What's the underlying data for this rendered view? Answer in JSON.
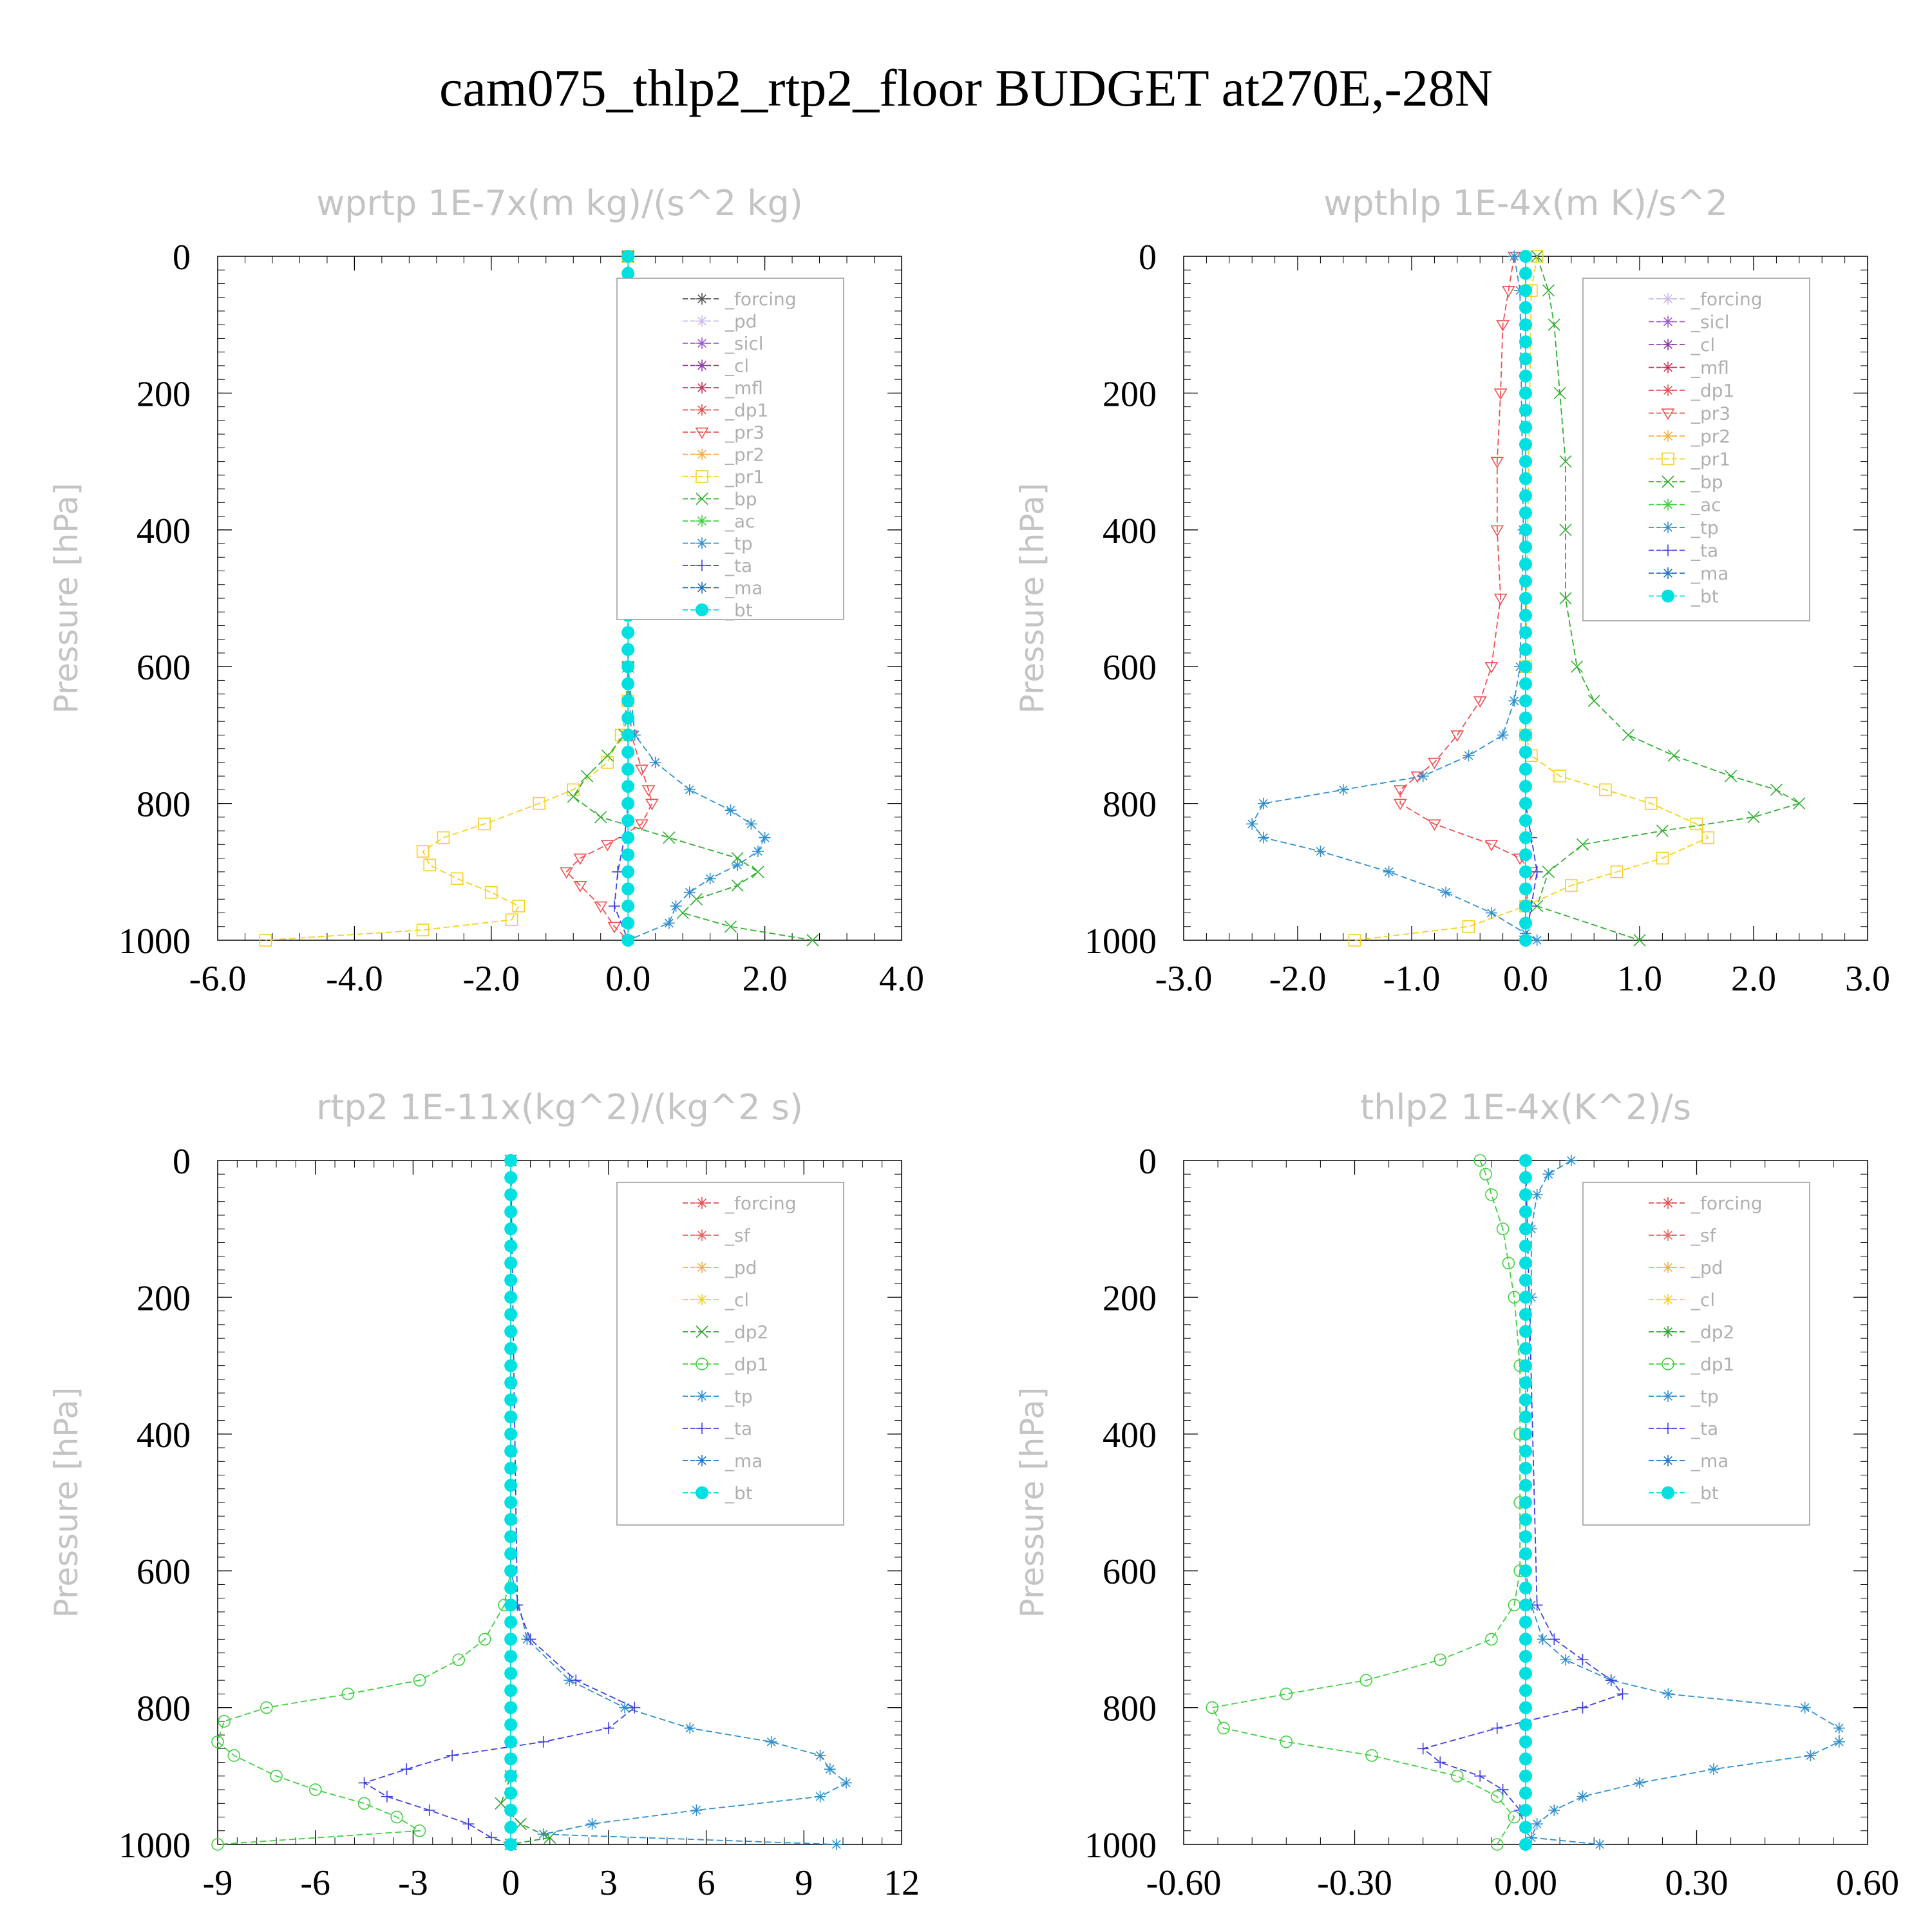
{
  "title": "cam075_thlp2_rtp2_floor  BUDGET at270E,-28N",
  "colors": {
    "forcing": "#555555",
    "pd": "#c9b9e8",
    "sicl": "#9b59d0",
    "cl": "#8e3aa8",
    "mfl": "#d2305a",
    "dp1": "#e05050",
    "pr3": "#f05050",
    "pr2": "#f5b040",
    "pr1": "#f5d020",
    "bp": "#30b030",
    "ac": "#40d040",
    "tp": "#2e90d0",
    "ta": "#4040e0",
    "ma": "#2070c0",
    "bt": "#00e0e0",
    "sf": "#f06060",
    "dp2": "#30a030"
  },
  "chart_data": [
    {
      "type": "line",
      "title": "wprtp  1E-7x(m kg)/(s^2 kg)",
      "ylabel": "Pressure [hPa]",
      "xlim": [
        -6,
        4
      ],
      "ylim": [
        1000,
        0
      ],
      "xticks": [
        "-6.0",
        "-4.0",
        "-2.0",
        "0.0",
        "2.0",
        "4.0"
      ],
      "yticks": [
        "0",
        "200",
        "400",
        "600",
        "800",
        "1000"
      ],
      "legend": [
        {
          "name": "_forcing",
          "key": "forcing"
        },
        {
          "name": "_pd",
          "key": "pd"
        },
        {
          "name": "_sicl",
          "key": "sicl"
        },
        {
          "name": "_cl",
          "key": "cl"
        },
        {
          "name": "_mfl",
          "key": "mfl"
        },
        {
          "name": "_dp1",
          "key": "dp1"
        },
        {
          "name": "_pr3",
          "key": "pr3"
        },
        {
          "name": "_pr2",
          "key": "pr2"
        },
        {
          "name": "_pr1",
          "key": "pr1"
        },
        {
          "name": "_bp",
          "key": "bp"
        },
        {
          "name": "_ac",
          "key": "ac"
        },
        {
          "name": "_tp",
          "key": "tp"
        },
        {
          "name": "_ta",
          "key": "ta"
        },
        {
          "name": "_ma",
          "key": "ma"
        },
        {
          "name": "_bt",
          "key": "bt"
        }
      ],
      "series": [
        {
          "key": "pr1",
          "marker": "square",
          "p": [
            0,
            100,
            300,
            500,
            650,
            700,
            740,
            780,
            800,
            830,
            850,
            870,
            890,
            910,
            930,
            950,
            970,
            985,
            1000
          ],
          "x": [
            0,
            0,
            0,
            0,
            0,
            -0.1,
            -0.3,
            -0.8,
            -1.3,
            -2.1,
            -2.7,
            -3,
            -2.9,
            -2.5,
            -2,
            -1.6,
            -1.7,
            -3,
            -5.3
          ]
        },
        {
          "key": "pr3",
          "marker": "tri-down",
          "p": [
            0,
            600,
            700,
            750,
            780,
            800,
            830,
            860,
            880,
            900,
            920,
            950,
            980,
            1000
          ],
          "x": [
            0,
            0,
            0.05,
            0.2,
            0.3,
            0.35,
            0.2,
            -0.3,
            -0.7,
            -0.9,
            -0.7,
            -0.4,
            -0.2,
            0
          ]
        },
        {
          "key": "bp",
          "marker": "x",
          "p": [
            0,
            600,
            700,
            730,
            760,
            790,
            820,
            850,
            880,
            900,
            920,
            940,
            960,
            980,
            1000
          ],
          "x": [
            0,
            0,
            -0.05,
            -0.3,
            -0.6,
            -0.8,
            -0.4,
            0.6,
            1.6,
            1.9,
            1.6,
            1,
            0.8,
            1.5,
            2.7
          ]
        },
        {
          "key": "tp",
          "marker": "star",
          "p": [
            0,
            600,
            700,
            740,
            780,
            810,
            830,
            850,
            870,
            890,
            910,
            930,
            950,
            975,
            1000
          ],
          "x": [
            0,
            0,
            0.1,
            0.4,
            0.9,
            1.5,
            1.8,
            2,
            1.9,
            1.6,
            1.2,
            0.9,
            0.7,
            0.6,
            0
          ]
        },
        {
          "key": "ta",
          "marker": "plus",
          "p": [
            0,
            700,
            800,
            850,
            900,
            950,
            1000
          ],
          "x": [
            0,
            0,
            0,
            -0.05,
            -0.15,
            -0.2,
            0
          ]
        },
        {
          "key": "bt",
          "marker": "dot",
          "p": [
            0,
            1000
          ],
          "x": [
            0,
            0
          ]
        }
      ]
    },
    {
      "type": "line",
      "title": "wpthlp  1E-4x(m K)/s^2",
      "ylabel": "Pressure [hPa]",
      "xlim": [
        -3,
        3
      ],
      "ylim": [
        1000,
        0
      ],
      "xticks": [
        "-3.0",
        "-2.0",
        "-1.0",
        "0.0",
        "1.0",
        "2.0",
        "3.0"
      ],
      "yticks": [
        "0",
        "200",
        "400",
        "600",
        "800",
        "1000"
      ],
      "legend": [
        {
          "name": "_forcing",
          "key": "pd"
        },
        {
          "name": "_sicl",
          "key": "sicl"
        },
        {
          "name": "_cl",
          "key": "cl"
        },
        {
          "name": "_mfl",
          "key": "mfl"
        },
        {
          "name": "_dp1",
          "key": "dp1"
        },
        {
          "name": "_pr3",
          "key": "pr3"
        },
        {
          "name": "_pr2",
          "key": "pr2"
        },
        {
          "name": "_pr1",
          "key": "pr1"
        },
        {
          "name": "_bp",
          "key": "bp"
        },
        {
          "name": "_ac",
          "key": "ac"
        },
        {
          "name": "_tp",
          "key": "tp"
        },
        {
          "name": "_ta",
          "key": "ta"
        },
        {
          "name": "_ma",
          "key": "ma"
        },
        {
          "name": "_bt",
          "key": "bt"
        }
      ],
      "series": [
        {
          "key": "pr3",
          "marker": "tri-down",
          "p": [
            0,
            50,
            100,
            200,
            300,
            400,
            500,
            600,
            650,
            700,
            740,
            760,
            780,
            800,
            830,
            860,
            880,
            900,
            950,
            1000
          ],
          "x": [
            -0.1,
            -0.15,
            -0.2,
            -0.22,
            -0.25,
            -0.25,
            -0.22,
            -0.3,
            -0.4,
            -0.6,
            -0.8,
            -0.95,
            -1.1,
            -1.1,
            -0.8,
            -0.3,
            -0.05,
            0.05,
            0,
            0
          ]
        },
        {
          "key": "bp",
          "marker": "x",
          "p": [
            0,
            50,
            100,
            200,
            300,
            400,
            500,
            600,
            650,
            700,
            730,
            760,
            780,
            800,
            820,
            840,
            860,
            900,
            950,
            1000
          ],
          "x": [
            0.1,
            0.2,
            0.25,
            0.3,
            0.35,
            0.35,
            0.35,
            0.45,
            0.6,
            0.9,
            1.3,
            1.8,
            2.2,
            2.4,
            2,
            1.2,
            0.5,
            0.2,
            0.1,
            1
          ]
        },
        {
          "key": "pr1",
          "marker": "square",
          "p": [
            0,
            50,
            600,
            700,
            730,
            760,
            780,
            800,
            830,
            850,
            880,
            900,
            920,
            950,
            980,
            1000
          ],
          "x": [
            0.1,
            0.05,
            0,
            0,
            0.05,
            0.3,
            0.7,
            1.1,
            1.5,
            1.6,
            1.2,
            0.8,
            0.4,
            0,
            -0.5,
            -1.5
          ]
        },
        {
          "key": "tp",
          "marker": "star",
          "p": [
            0,
            50,
            400,
            600,
            650,
            700,
            730,
            760,
            780,
            800,
            830,
            850,
            870,
            900,
            930,
            960,
            990,
            1000
          ],
          "x": [
            -0.1,
            -0.05,
            -0.02,
            -0.05,
            -0.1,
            -0.2,
            -0.5,
            -0.9,
            -1.6,
            -2.3,
            -2.4,
            -2.3,
            -1.8,
            -1.2,
            -0.7,
            -0.3,
            0,
            0.1
          ]
        },
        {
          "key": "ta",
          "marker": "plus",
          "p": [
            0,
            800,
            850,
            900,
            950,
            1000
          ],
          "x": [
            0,
            0,
            0.05,
            0.1,
            0.05,
            0
          ]
        },
        {
          "key": "bt",
          "marker": "dot",
          "p": [
            0,
            1000
          ],
          "x": [
            0,
            0
          ]
        }
      ]
    },
    {
      "type": "line",
      "title": "rtp2  1E-11x(kg^2)/(kg^2 s)",
      "ylabel": "Pressure [hPa]",
      "xlim": [
        -9,
        12
      ],
      "ylim": [
        1000,
        0
      ],
      "xticks": [
        "-9",
        "-6",
        "-3",
        "0",
        "3",
        "6",
        "9",
        "12"
      ],
      "yticks": [
        "0",
        "200",
        "400",
        "600",
        "800",
        "1000"
      ],
      "legend": [
        {
          "name": "_forcing",
          "key": "dp1"
        },
        {
          "name": "_sf",
          "key": "sf"
        },
        {
          "name": "_pd",
          "key": "pr2"
        },
        {
          "name": "_cl",
          "key": "pr1"
        },
        {
          "name": "_dp2",
          "key": "dp2"
        },
        {
          "name": "_dp1",
          "key": "ac"
        },
        {
          "name": "_tp",
          "key": "tp"
        },
        {
          "name": "_ta",
          "key": "ta"
        },
        {
          "name": "_ma",
          "key": "ma"
        },
        {
          "name": "_bt",
          "key": "bt"
        }
      ],
      "series": [
        {
          "key": "ac",
          "marker": "circle",
          "p": [
            0,
            600,
            650,
            700,
            730,
            760,
            780,
            800,
            820,
            850,
            870,
            900,
            920,
            940,
            960,
            980,
            1000
          ],
          "x": [
            0,
            0,
            -0.2,
            -0.8,
            -1.6,
            -2.8,
            -5,
            -7.5,
            -8.8,
            -9,
            -8.5,
            -7.2,
            -6,
            -4.5,
            -3.5,
            -2.8,
            -9
          ]
        },
        {
          "key": "tp",
          "marker": "star",
          "p": [
            0,
            600,
            700,
            760,
            800,
            830,
            850,
            870,
            890,
            910,
            930,
            950,
            970,
            985,
            1000
          ],
          "x": [
            0,
            0,
            0.5,
            1.8,
            3.5,
            5.5,
            8,
            9.5,
            9.8,
            10.3,
            9.5,
            5.7,
            2.5,
            1,
            10
          ]
        },
        {
          "key": "ta",
          "marker": "plus",
          "p": [
            0,
            650,
            700,
            760,
            800,
            830,
            850,
            870,
            890,
            910,
            930,
            950,
            970,
            990,
            1000
          ],
          "x": [
            0,
            0.2,
            0.6,
            2,
            3.8,
            3,
            1,
            -1.8,
            -3.2,
            -4.5,
            -3.8,
            -2.5,
            -1.3,
            -0.6,
            0
          ]
        },
        {
          "key": "dp2",
          "marker": "x",
          "p": [
            0,
            900,
            940,
            970,
            990,
            1000
          ],
          "x": [
            0,
            0,
            -0.3,
            0.3,
            1.2,
            0
          ]
        },
        {
          "key": "bt",
          "marker": "dot",
          "p": [
            0,
            1000
          ],
          "x": [
            0,
            0
          ]
        }
      ]
    },
    {
      "type": "line",
      "title": "thlp2  1E-4x(K^2)/s",
      "ylabel": "Pressure [hPa]",
      "xlim": [
        -0.6,
        0.6
      ],
      "ylim": [
        1000,
        0
      ],
      "xticks": [
        "-0.60",
        "-0.30",
        "0.00",
        "0.30",
        "0.60"
      ],
      "yticks": [
        "0",
        "200",
        "400",
        "600",
        "800",
        "1000"
      ],
      "legend": [
        {
          "name": "_forcing",
          "key": "dp1"
        },
        {
          "name": "_sf",
          "key": "sf"
        },
        {
          "name": "_pd",
          "key": "pr2"
        },
        {
          "name": "_cl",
          "key": "pr1"
        },
        {
          "name": "_dp2",
          "key": "dp2"
        },
        {
          "name": "_dp1",
          "key": "ac"
        },
        {
          "name": "_tp",
          "key": "tp"
        },
        {
          "name": "_ta",
          "key": "ta"
        },
        {
          "name": "_ma",
          "key": "ma"
        },
        {
          "name": "_bt",
          "key": "bt"
        }
      ],
      "series": [
        {
          "key": "ac",
          "marker": "circle",
          "p": [
            0,
            20,
            50,
            100,
            150,
            200,
            300,
            400,
            500,
            600,
            650,
            700,
            730,
            760,
            780,
            800,
            830,
            850,
            870,
            900,
            930,
            960,
            1000
          ],
          "x": [
            -0.08,
            -0.07,
            -0.06,
            -0.04,
            -0.03,
            -0.02,
            -0.01,
            -0.01,
            -0.01,
            -0.01,
            -0.02,
            -0.06,
            -0.15,
            -0.28,
            -0.42,
            -0.55,
            -0.53,
            -0.42,
            -0.27,
            -0.12,
            -0.05,
            -0.02,
            -0.05
          ]
        },
        {
          "key": "tp",
          "marker": "star",
          "p": [
            0,
            20,
            50,
            100,
            200,
            400,
            600,
            650,
            700,
            730,
            760,
            780,
            800,
            830,
            850,
            870,
            890,
            910,
            930,
            950,
            970,
            990,
            1000
          ],
          "x": [
            0.08,
            0.04,
            0.02,
            0.01,
            0.01,
            0,
            0,
            0.01,
            0.03,
            0.07,
            0.15,
            0.25,
            0.49,
            0.55,
            0.55,
            0.5,
            0.33,
            0.2,
            0.1,
            0.05,
            0.02,
            0.01,
            0.13
          ]
        },
        {
          "key": "ta",
          "marker": "plus",
          "p": [
            0,
            650,
            700,
            730,
            760,
            780,
            800,
            830,
            860,
            880,
            900,
            920,
            950,
            980,
            1000
          ],
          "x": [
            0,
            0.02,
            0.05,
            0.1,
            0.15,
            0.17,
            0.1,
            -0.05,
            -0.18,
            -0.15,
            -0.08,
            -0.04,
            -0.01,
            0,
            0
          ]
        },
        {
          "key": "bt",
          "marker": "dot",
          "p": [
            0,
            1000
          ],
          "x": [
            0,
            0
          ]
        }
      ]
    }
  ]
}
